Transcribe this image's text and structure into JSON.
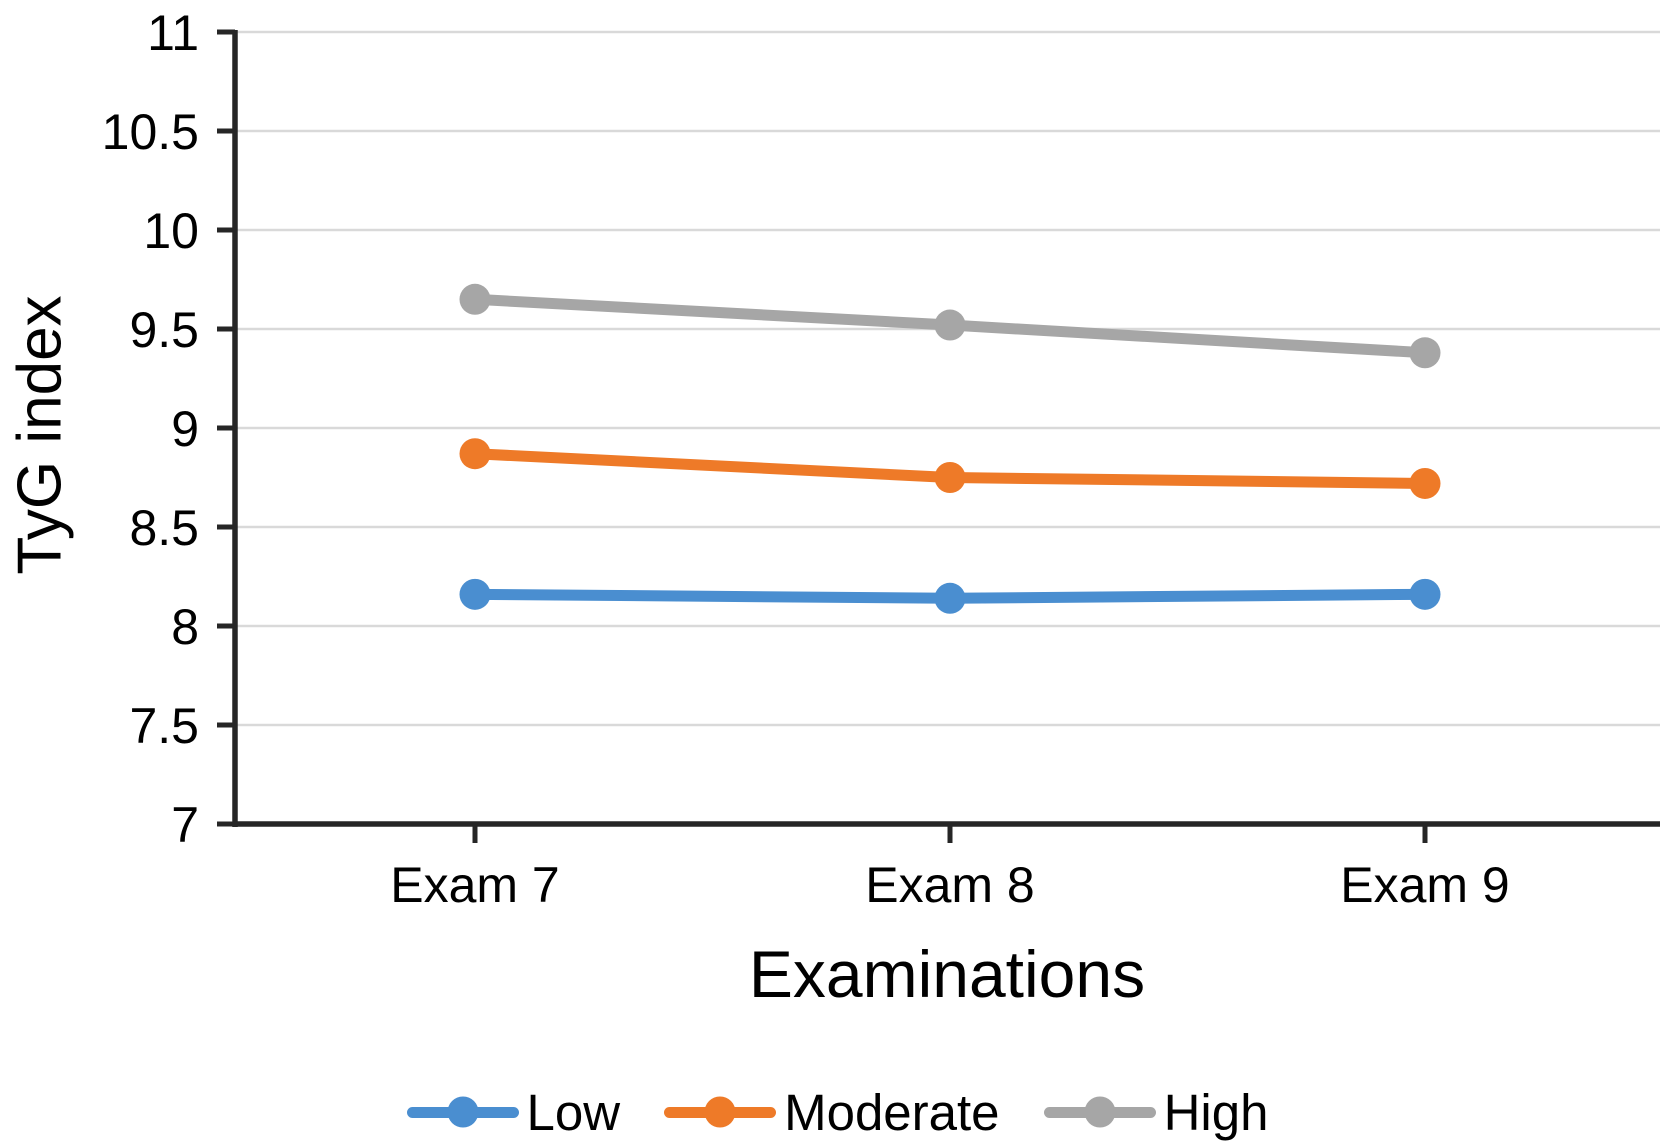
{
  "chart_data": {
    "type": "line",
    "title": "",
    "xlabel": "Examinations",
    "ylabel": "TyG index",
    "categories": [
      "Exam 7",
      "Exam 8",
      "Exam 9"
    ],
    "series": [
      {
        "name": "Low",
        "color": "#4A8ED0",
        "values": [
          8.16,
          8.14,
          8.16
        ]
      },
      {
        "name": "Moderate",
        "color": "#EE7A28",
        "values": [
          8.87,
          8.75,
          8.72
        ]
      },
      {
        "name": "High",
        "color": "#A6A6A6",
        "values": [
          9.65,
          9.52,
          9.38
        ]
      }
    ],
    "ylim": [
      7,
      11
    ],
    "yticks": [
      7,
      7.5,
      8,
      8.5,
      9,
      9.5,
      10,
      10.5,
      11
    ],
    "grid": "horizontal",
    "legend_position": "bottom",
    "style": {
      "axis_color": "#262626",
      "gridline_color": "#D9D9D9",
      "tick_label_color": "#000000",
      "background": "#FFFFFF"
    }
  }
}
